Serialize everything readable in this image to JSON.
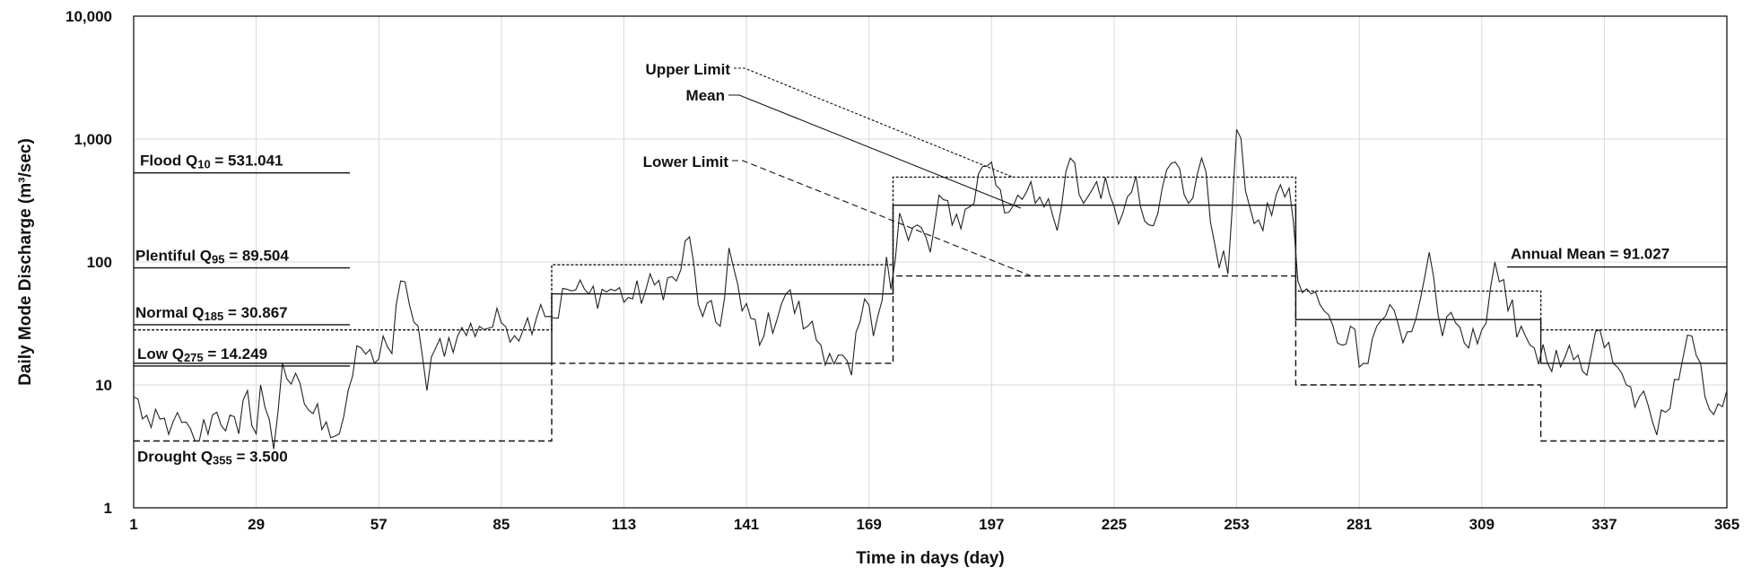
{
  "chart_data": {
    "type": "line",
    "title": "",
    "xlabel": "Time  in days (day)",
    "ylabel": "Daily Mode Discharge (m³/sec)",
    "yscale": "log",
    "ylim": [
      1,
      10000
    ],
    "xlim": [
      1,
      365
    ],
    "x_ticks": [
      1,
      29,
      57,
      85,
      113,
      141,
      169,
      197,
      225,
      253,
      281,
      309,
      337,
      365
    ],
    "y_ticks": [
      1,
      10,
      100,
      1000,
      10000
    ],
    "y_tick_labels": [
      "1",
      "10",
      "100",
      "1,000",
      "10,000"
    ],
    "grid": true,
    "segments": [
      {
        "start": 1,
        "end": 96,
        "mean": 15,
        "upper": 28,
        "lower": 3.5
      },
      {
        "start": 97,
        "end": 174,
        "mean": 55,
        "upper": 95,
        "lower": 15
      },
      {
        "start": 175,
        "end": 266,
        "mean": 290,
        "upper": 490,
        "lower": 77
      },
      {
        "start": 267,
        "end": 322,
        "mean": 34,
        "upper": 58,
        "lower": 10
      },
      {
        "start": 323,
        "end": 365,
        "mean": 15,
        "upper": 28,
        "lower": 3.5
      }
    ],
    "daily_series": {
      "name": "Daily discharge",
      "anchors": [
        [
          1,
          8
        ],
        [
          5,
          4.5
        ],
        [
          10,
          5
        ],
        [
          15,
          3.5
        ],
        [
          20,
          6
        ],
        [
          25,
          4
        ],
        [
          27,
          9
        ],
        [
          29,
          4
        ],
        [
          30,
          10
        ],
        [
          33,
          3
        ],
        [
          35,
          15
        ],
        [
          40,
          7
        ],
        [
          45,
          5
        ],
        [
          48,
          4
        ],
        [
          50,
          9
        ],
        [
          53,
          20
        ],
        [
          56,
          15
        ],
        [
          58,
          25
        ],
        [
          60,
          18
        ],
        [
          62,
          70
        ],
        [
          64,
          45
        ],
        [
          66,
          30
        ],
        [
          68,
          9
        ],
        [
          70,
          20
        ],
        [
          75,
          25
        ],
        [
          80,
          30
        ],
        [
          85,
          32
        ],
        [
          90,
          28
        ],
        [
          94,
          45
        ],
        [
          97,
          35
        ],
        [
          100,
          60
        ],
        [
          105,
          55
        ],
        [
          110,
          60
        ],
        [
          115,
          50
        ],
        [
          120,
          65
        ],
        [
          125,
          70
        ],
        [
          128,
          160
        ],
        [
          130,
          45
        ],
        [
          135,
          30
        ],
        [
          137,
          130
        ],
        [
          140,
          40
        ],
        [
          145,
          25
        ],
        [
          150,
          55
        ],
        [
          155,
          30
        ],
        [
          160,
          18
        ],
        [
          165,
          12
        ],
        [
          168,
          50
        ],
        [
          170,
          25
        ],
        [
          173,
          110
        ],
        [
          174,
          60
        ],
        [
          176,
          250
        ],
        [
          178,
          150
        ],
        [
          180,
          200
        ],
        [
          183,
          120
        ],
        [
          185,
          350
        ],
        [
          188,
          200
        ],
        [
          192,
          280
        ],
        [
          195,
          600
        ],
        [
          197,
          650
        ],
        [
          200,
          250
        ],
        [
          203,
          350
        ],
        [
          206,
          450
        ],
        [
          209,
          280
        ],
        [
          212,
          180
        ],
        [
          215,
          700
        ],
        [
          218,
          300
        ],
        [
          221,
          450
        ],
        [
          224,
          350
        ],
        [
          227,
          250
        ],
        [
          230,
          500
        ],
        [
          233,
          200
        ],
        [
          236,
          400
        ],
        [
          239,
          650
        ],
        [
          242,
          300
        ],
        [
          245,
          700
        ],
        [
          248,
          140
        ],
        [
          251,
          80
        ],
        [
          253,
          1200
        ],
        [
          256,
          280
        ],
        [
          259,
          180
        ],
        [
          262,
          350
        ],
        [
          265,
          400
        ],
        [
          267,
          70
        ],
        [
          270,
          55
        ],
        [
          273,
          40
        ],
        [
          276,
          22
        ],
        [
          279,
          30
        ],
        [
          282,
          15
        ],
        [
          285,
          30
        ],
        [
          288,
          45
        ],
        [
          291,
          22
        ],
        [
          294,
          35
        ],
        [
          297,
          120
        ],
        [
          300,
          25
        ],
        [
          303,
          32
        ],
        [
          306,
          20
        ],
        [
          309,
          28
        ],
        [
          312,
          100
        ],
        [
          315,
          40
        ],
        [
          318,
          30
        ],
        [
          321,
          20
        ],
        [
          324,
          15
        ],
        [
          327,
          14
        ],
        [
          330,
          16
        ],
        [
          333,
          12
        ],
        [
          336,
          28
        ],
        [
          339,
          15
        ],
        [
          342,
          10
        ],
        [
          345,
          8
        ],
        [
          348,
          5
        ],
        [
          351,
          6
        ],
        [
          354,
          11
        ],
        [
          357,
          25
        ],
        [
          360,
          8
        ],
        [
          363,
          7
        ],
        [
          365,
          9
        ]
      ]
    },
    "annotations": {
      "flood": {
        "prefix": "Flood Q",
        "sub": "10",
        "suffix": " = 531.041",
        "value": 531.041
      },
      "plentiful": {
        "prefix": "Plentiful Q",
        "sub": "95",
        "suffix": " = 89.504",
        "value": 89.504
      },
      "normal": {
        "prefix": "Normal Q",
        "sub": "185",
        "suffix": " = 30.867",
        "value": 30.867
      },
      "low": {
        "prefix": "Low Q",
        "sub": "275",
        "suffix": " = 14.249",
        "value": 14.249
      },
      "drought": {
        "prefix": "Drought Q",
        "sub": "355",
        "suffix": " = 3.500",
        "value": 3.5
      },
      "annual_mean": {
        "text": "Annual Mean = 91.027",
        "value": 91.027
      },
      "upper_limit": "Upper Limit",
      "mean": "Mean",
      "lower_limit": "Lower Limit"
    }
  }
}
